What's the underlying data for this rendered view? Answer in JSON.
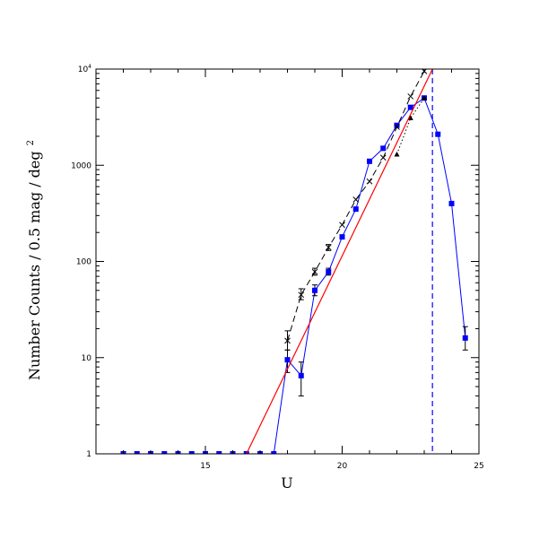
{
  "chart_data": {
    "type": "line",
    "xlabel": "U",
    "ylabel": "Number Counts / 0.5 mag / deg",
    "ylabel_superscript": "2",
    "xlim": [
      11,
      25
    ],
    "ylim": [
      1,
      10000
    ],
    "yscale": "log",
    "x_ticks": [
      15,
      20,
      25
    ],
    "y_ticks": [
      {
        "value": 1,
        "label": "1"
      },
      {
        "value": 10,
        "label": "10"
      },
      {
        "value": 100,
        "label": "100"
      },
      {
        "value": 1000,
        "label": "1000"
      },
      {
        "value": 10000,
        "label": "10",
        "sup": "4"
      }
    ],
    "grid": false,
    "series": [
      {
        "style": "blue-squares",
        "color": "#0000ff",
        "points": [
          {
            "x": 12.0,
            "y": 1
          },
          {
            "x": 12.5,
            "y": 1
          },
          {
            "x": 13.0,
            "y": 1
          },
          {
            "x": 13.5,
            "y": 1
          },
          {
            "x": 14.0,
            "y": 1
          },
          {
            "x": 14.5,
            "y": 1
          },
          {
            "x": 15.0,
            "y": 1
          },
          {
            "x": 15.5,
            "y": 1
          },
          {
            "x": 16.0,
            "y": 1
          },
          {
            "x": 16.5,
            "y": 1
          },
          {
            "x": 17.0,
            "y": 1
          },
          {
            "x": 17.5,
            "y": 1
          },
          {
            "x": 18.0,
            "y": 9.5,
            "err_lo": 7.0,
            "err_hi": 12.0
          },
          {
            "x": 18.5,
            "y": 6.5,
            "err_lo": 4.0,
            "err_hi": 9.0
          },
          {
            "x": 19.0,
            "y": 50,
            "err_lo": 44,
            "err_hi": 57
          },
          {
            "x": 19.5,
            "y": 78,
            "err_lo": 72,
            "err_hi": 85
          },
          {
            "x": 20.0,
            "y": 180
          },
          {
            "x": 20.5,
            "y": 350
          },
          {
            "x": 21.0,
            "y": 1100
          },
          {
            "x": 21.5,
            "y": 1500
          },
          {
            "x": 22.0,
            "y": 2600
          },
          {
            "x": 22.5,
            "y": 4000
          },
          {
            "x": 23.0,
            "y": 5000
          },
          {
            "x": 23.5,
            "y": 2100
          },
          {
            "x": 24.0,
            "y": 400
          },
          {
            "x": 24.5,
            "y": 16,
            "err_lo": 12,
            "err_hi": 21
          }
        ]
      },
      {
        "style": "black-dashed-cross",
        "color": "#000000",
        "points": [
          {
            "x": 18.0,
            "y": 15,
            "err_lo": 12,
            "err_hi": 19
          },
          {
            "x": 18.5,
            "y": 45,
            "err_lo": 40,
            "err_hi": 52
          },
          {
            "x": 19.0,
            "y": 78,
            "err_lo": 72,
            "err_hi": 85
          },
          {
            "x": 19.5,
            "y": 140,
            "err_lo": 130,
            "err_hi": 150
          },
          {
            "x": 20.0,
            "y": 240
          },
          {
            "x": 20.5,
            "y": 440
          },
          {
            "x": 21.0,
            "y": 680
          },
          {
            "x": 21.5,
            "y": 1200
          },
          {
            "x": 22.0,
            "y": 2500
          },
          {
            "x": 22.5,
            "y": 5200
          },
          {
            "x": 23.0,
            "y": 9500
          }
        ]
      },
      {
        "style": "black-dotted-triangle",
        "color": "#000000",
        "points": [
          {
            "x": 22.0,
            "y": 1300
          },
          {
            "x": 22.5,
            "y": 3100
          },
          {
            "x": 23.0,
            "y": 5000
          }
        ]
      },
      {
        "style": "red-line",
        "color": "#ff0000",
        "points": [
          {
            "x": 16.5,
            "y": 1
          },
          {
            "x": 23.3,
            "y": 10000
          }
        ]
      }
    ],
    "vline": {
      "x": 23.3,
      "color": "#0000ff",
      "style": "dashed"
    }
  }
}
